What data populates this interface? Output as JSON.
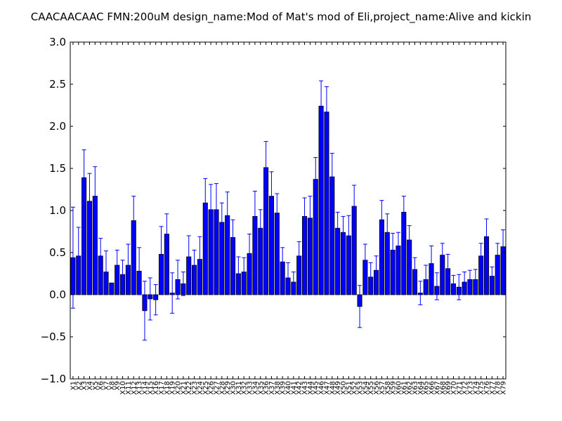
{
  "chart_data": {
    "type": "bar",
    "title": "CAACAACAAC  FMN:200uM  design_name:Mod of Mat's mod of Eli,project_name:Alive and kickin",
    "xlabel": "",
    "ylabel": "",
    "ylim": [
      -1.0,
      3.0
    ],
    "yticks": [
      "−1.0",
      "−0.5",
      "0.0",
      "0.5",
      "1.0",
      "1.5",
      "2.0",
      "2.5",
      "3.0"
    ],
    "grid": false,
    "colors": {
      "bar": "#0000ff",
      "edge": "#000000",
      "error": "#0000ff"
    },
    "categories": [
      "X1",
      "X2",
      "X3",
      "X4",
      "X5",
      "X6",
      "X7",
      "X8",
      "X9",
      "X10",
      "X11",
      "X12",
      "X13",
      "X14",
      "X15",
      "X16",
      "X17",
      "X18",
      "X19",
      "X20",
      "X21",
      "X22",
      "X23",
      "X24",
      "X25",
      "X26",
      "X27",
      "X28",
      "X29",
      "X30",
      "X31",
      "X32",
      "X33",
      "X34",
      "X35",
      "X36",
      "X37",
      "X38",
      "X39",
      "X40",
      "X41",
      "X42",
      "X43",
      "X44",
      "X45",
      "X46",
      "X47",
      "X48",
      "X49",
      "X50",
      "X51",
      "X52",
      "X53",
      "X54",
      "X55",
      "X56",
      "X57",
      "X58",
      "X59",
      "X60",
      "X61",
      "X62",
      "X63",
      "X64",
      "X65",
      "X66",
      "X67",
      "X68",
      "X69",
      "X70",
      "X71",
      "X72",
      "X73",
      "X74",
      "X75",
      "X76",
      "X77",
      "X78",
      "X79"
    ],
    "values": [
      0.44,
      0.46,
      1.39,
      1.11,
      1.17,
      0.46,
      0.27,
      0.14,
      0.35,
      0.24,
      0.35,
      0.88,
      0.28,
      -0.19,
      -0.05,
      -0.06,
      0.48,
      0.72,
      0.02,
      0.18,
      0.13,
      0.45,
      0.35,
      0.42,
      1.09,
      1.01,
      1.01,
      0.86,
      0.94,
      0.68,
      0.25,
      0.27,
      0.49,
      0.93,
      0.79,
      1.51,
      1.17,
      0.97,
      0.39,
      0.2,
      0.15,
      0.46,
      0.93,
      0.91,
      1.37,
      2.24,
      2.17,
      1.4,
      0.79,
      0.74,
      0.7,
      1.05,
      -0.14,
      0.41,
      0.21,
      0.29,
      0.89,
      0.74,
      0.53,
      0.58,
      0.98,
      0.65,
      0.3,
      0.02,
      0.18,
      0.37,
      0.1,
      0.47,
      0.31,
      0.13,
      0.09,
      0.15,
      0.18,
      0.18,
      0.46,
      0.69,
      0.22,
      0.47,
      0.57
    ],
    "errors": [
      0.6,
      0.34,
      0.33,
      0.33,
      0.35,
      0.21,
      0.25,
      0.0,
      0.18,
      0.17,
      0.25,
      0.29,
      0.28,
      0.35,
      0.25,
      0.18,
      0.33,
      0.24,
      0.24,
      0.23,
      0.14,
      0.25,
      0.18,
      0.27,
      0.29,
      0.3,
      0.31,
      0.23,
      0.28,
      0.21,
      0.2,
      0.17,
      0.23,
      0.3,
      0.22,
      0.31,
      0.29,
      0.23,
      0.17,
      0.18,
      0.12,
      0.17,
      0.22,
      0.26,
      0.26,
      0.3,
      0.3,
      0.28,
      0.19,
      0.19,
      0.24,
      0.25,
      0.25,
      0.19,
      0.17,
      0.17,
      0.23,
      0.22,
      0.2,
      0.16,
      0.19,
      0.17,
      0.14,
      0.14,
      0.17,
      0.21,
      0.16,
      0.14,
      0.17,
      0.1,
      0.15,
      0.12,
      0.11,
      0.12,
      0.15,
      0.21,
      0.11,
      0.14,
      0.2
    ]
  }
}
